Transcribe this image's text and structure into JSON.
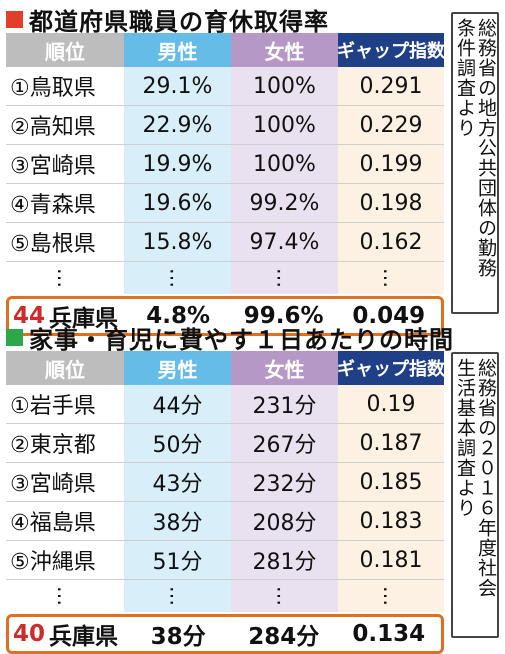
{
  "colors": {
    "heading_square_1": "#e0402a",
    "heading_square_2": "#2aa84a",
    "header_rank": "#bdbdbd",
    "header_male": "#65bde7",
    "header_female": "#b698c7",
    "header_gap": "#1f3f86",
    "highlight_border": "#e0701e",
    "highlight_rank": "#cf2b2b"
  },
  "section1": {
    "title": "都道府県職員の育休取得率",
    "headers": {
      "rank": "順位",
      "male": "男性",
      "female": "女性",
      "gap": "ギャップ指数"
    },
    "rows": [
      {
        "rank": "①鳥取県",
        "male": "29.1%",
        "female": "100%",
        "gap": "0.291"
      },
      {
        "rank": "②高知県",
        "male": "22.9%",
        "female": "100%",
        "gap": "0.229"
      },
      {
        "rank": "③宮崎県",
        "male": "19.9%",
        "female": "100%",
        "gap": "0.199"
      },
      {
        "rank": "④青森県",
        "male": "19.6%",
        "female": "99.2%",
        "gap": "0.198"
      },
      {
        "rank": "⑤島根県",
        "male": "15.8%",
        "female": "97.4%",
        "gap": "0.162"
      }
    ],
    "ellipsis": "…",
    "highlight": {
      "rank_num": "44",
      "pref": "兵庫県",
      "male": "4.8%",
      "female": "99.6%",
      "gap": "0.049"
    },
    "source": [
      "総務省の地方公共団体の勤務",
      "条件調査より"
    ]
  },
  "section2": {
    "title": "家事・育児に費やす１日あたりの時間",
    "headers": {
      "rank": "順位",
      "male": "男性",
      "female": "女性",
      "gap": "ギャップ指数"
    },
    "rows": [
      {
        "rank": "①岩手県",
        "male": "44分",
        "female": "231分",
        "gap": "0.19"
      },
      {
        "rank": "②東京都",
        "male": "50分",
        "female": "267分",
        "gap": "0.187"
      },
      {
        "rank": "③宮崎県",
        "male": "43分",
        "female": "232分",
        "gap": "0.185"
      },
      {
        "rank": "④福島県",
        "male": "38分",
        "female": "208分",
        "gap": "0.183"
      },
      {
        "rank": "⑤沖縄県",
        "male": "51分",
        "female": "281分",
        "gap": "0.181"
      }
    ],
    "ellipsis": "…",
    "highlight": {
      "rank_num": "40",
      "pref": "兵庫県",
      "male": "38分",
      "female": "284分",
      "gap": "0.134"
    },
    "source": [
      "総務省の２０１６年度社会",
      "生活基本調査より"
    ]
  }
}
